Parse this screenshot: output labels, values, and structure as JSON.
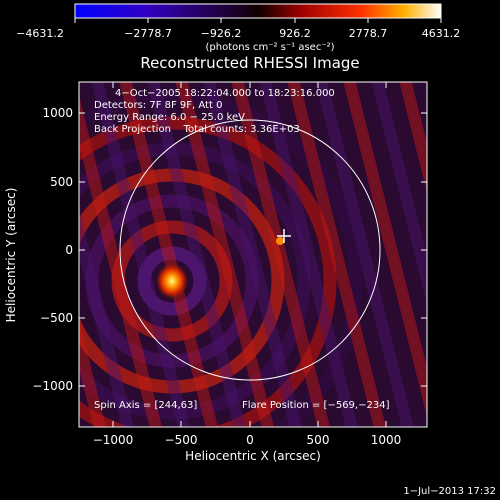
{
  "colorbar": {
    "tick_labels": [
      "−4631.2",
      "−2778.7",
      "−926.2",
      "926.2",
      "2778.7",
      "4631.2"
    ],
    "unit_label": "(photons cm⁻² s⁻¹ asec⁻²)"
  },
  "plot": {
    "title": "Reconstructed RHESSI Image",
    "xlabel": "Heliocentric X (arcsec)",
    "ylabel": "Heliocentric Y (arcsec)",
    "x_ticks": [
      "−1000",
      "−500",
      "0",
      "500",
      "1000"
    ],
    "y_ticks": [
      "1000",
      "500",
      "0",
      "−500",
      "−1000"
    ],
    "info_lines": [
      "4−Oct−2005 18:22:04.000 to 18:23:16.000",
      "Detectors: 7F 8F 9F, Att 0",
      "Energy Range: 6.0 − 25.0 keV",
      "Back Projection    Total counts: 3.36E+03"
    ],
    "spin_axis": "Spin Axis = [244,63]",
    "flare_position": "Flare Position = [−569,−234]"
  },
  "footer": {
    "timestamp": "1−Jul−2013 17:32"
  },
  "colors": {
    "background": "#000000",
    "colormap": [
      "#0000ff",
      "#4000a0",
      "#000000",
      "#c00000",
      "#ff8000",
      "#ffffff"
    ]
  }
}
